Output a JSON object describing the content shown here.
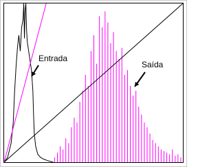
{
  "chart_data": {
    "type": "line",
    "xlim": [
      0,
      255
    ],
    "ylim": [
      0,
      100
    ],
    "annotations": [
      {
        "text": "Entrada"
      },
      {
        "text": "Saída"
      }
    ],
    "series": [
      {
        "type": "line",
        "color": "#000000",
        "x": [
          0,
          5,
          10,
          13,
          15,
          17,
          19,
          21,
          23,
          25,
          27,
          28,
          29,
          30,
          31,
          32,
          33,
          35,
          37,
          39,
          41,
          42,
          43,
          45,
          48,
          52,
          56,
          62,
          70
        ],
        "values": [
          0,
          3,
          12,
          25,
          45,
          60,
          72,
          80,
          70,
          85,
          90,
          100,
          78,
          96,
          100,
          84,
          76,
          70,
          64,
          58,
          45,
          30,
          18,
          10,
          5,
          3,
          2,
          1,
          0
        ]
      },
      {
        "type": "stem",
        "color": "#ff00ff",
        "x": [
          72,
          76,
          80,
          84,
          88,
          92,
          96,
          100,
          104,
          108,
          112,
          116,
          120,
          124,
          128,
          132,
          136,
          140,
          144,
          148,
          152,
          156,
          160,
          164,
          168,
          172,
          176,
          180,
          184,
          188,
          192,
          196,
          200,
          204,
          208,
          212,
          216,
          220,
          224,
          228,
          232,
          236,
          240,
          244,
          248,
          252
        ],
        "values": [
          3,
          6,
          10,
          8,
          15,
          12,
          22,
          28,
          25,
          38,
          45,
          55,
          48,
          70,
          80,
          62,
          92,
          85,
          95,
          88,
          75,
          82,
          70,
          65,
          72,
          55,
          58,
          48,
          42,
          45,
          35,
          30,
          25,
          22,
          18,
          14,
          12,
          10,
          8,
          7,
          6,
          5,
          8,
          4,
          5,
          3
        ]
      },
      {
        "type": "line",
        "color": "#000000",
        "x": [
          0,
          255
        ],
        "values": [
          0,
          100
        ]
      },
      {
        "type": "line",
        "color": "#ff00ff",
        "x": [
          0,
          60
        ],
        "values": [
          0,
          100
        ]
      }
    ]
  }
}
